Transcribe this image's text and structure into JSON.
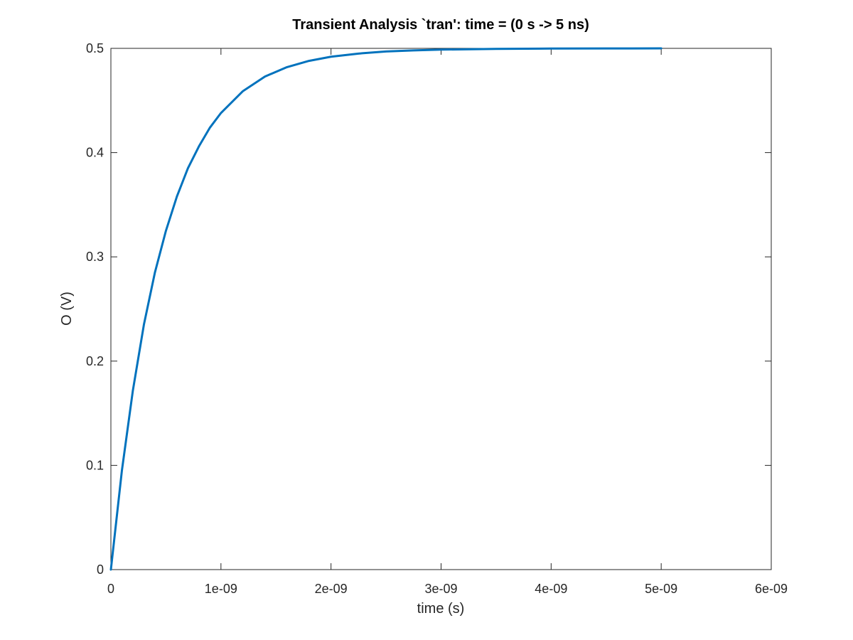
{
  "chart_data": {
    "type": "line",
    "title": "Transient Analysis `tran': time = (0 s -> 5 ns)",
    "xlabel": "time (s)",
    "ylabel": "O (V)",
    "xlim": [
      0,
      6e-09
    ],
    "ylim": [
      0,
      0.5
    ],
    "x_ticks": [
      0,
      1e-09,
      2e-09,
      3e-09,
      4e-09,
      5e-09,
      6e-09
    ],
    "x_tick_labels": [
      "0",
      "1e-09",
      "2e-09",
      "3e-09",
      "4e-09",
      "5e-09",
      "6e-09"
    ],
    "y_ticks": [
      0,
      0.1,
      0.2,
      0.3,
      0.4,
      0.5
    ],
    "y_tick_labels": [
      "0",
      "0.1",
      "0.2",
      "0.3",
      "0.4",
      "0.5"
    ],
    "grid": false,
    "series": [
      {
        "color": "#0072bd",
        "x": [
          0,
          1e-10,
          2e-10,
          3e-10,
          4e-10,
          5e-10,
          6e-10,
          7e-10,
          8e-10,
          9e-10,
          1e-09,
          1.2e-09,
          1.4e-09,
          1.6e-09,
          1.8e-09,
          2e-09,
          2.25e-09,
          2.5e-09,
          2.75e-09,
          3e-09,
          3.5e-09,
          4e-09,
          4.5e-09,
          5e-09
        ],
        "values": [
          0,
          0.095,
          0.172,
          0.235,
          0.285,
          0.325,
          0.358,
          0.385,
          0.406,
          0.424,
          0.438,
          0.459,
          0.473,
          0.482,
          0.488,
          0.492,
          0.495,
          0.497,
          0.498,
          0.4988,
          0.4995,
          0.4998,
          0.4999,
          0.5
        ]
      }
    ]
  }
}
